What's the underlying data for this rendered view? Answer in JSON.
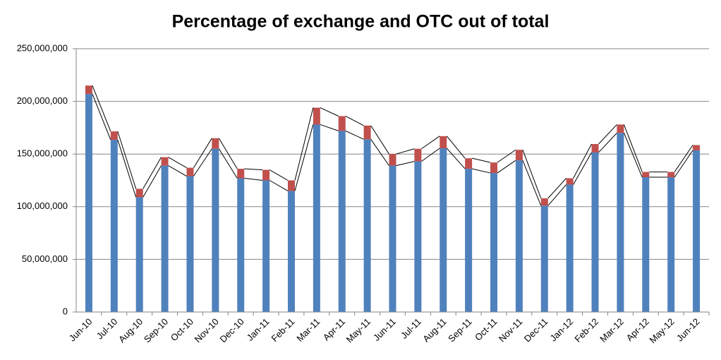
{
  "chart_data": {
    "type": "stacked-bar",
    "title": "Percentage of exchange and OTC out of total",
    "categories": [
      "Jun-10",
      "Jul-10",
      "Aug-10",
      "Sep-10",
      "Oct-10",
      "Nov-10",
      "Dec-10",
      "Jan-11",
      "Feb-11",
      "Mar-11",
      "Apr-11",
      "May-11",
      "Jun-11",
      "Jul-11",
      "Aug-11",
      "Sep-11",
      "Oct-11",
      "Nov-11",
      "Dec-11",
      "Jan-12",
      "Feb-12",
      "Mar-12",
      "Apr-12",
      "May-12",
      "Jun-12"
    ],
    "series": [
      {
        "color": "#4f81bd",
        "values": [
          207000000,
          163500000,
          109000000,
          139000000,
          129000000,
          155000000,
          127000000,
          125000000,
          115000000,
          178000000,
          172000000,
          164000000,
          139000000,
          143000000,
          155500000,
          136000000,
          132000000,
          144000000,
          101000000,
          121000000,
          151500000,
          170000000,
          128000000,
          128000000,
          153500000
        ]
      },
      {
        "color": "#c0504d",
        "values": [
          8000000,
          8000000,
          8000000,
          8000000,
          8000000,
          10000000,
          9000000,
          10000000,
          10000000,
          16000000,
          14000000,
          13000000,
          11000000,
          12000000,
          11500000,
          10000000,
          10000000,
          10000000,
          7000000,
          6000000,
          8000000,
          8000000,
          5000000,
          5000000,
          5000000
        ]
      }
    ],
    "ylim": [
      0,
      250000000
    ],
    "yticks": [
      0,
      {
        "value": 50000000,
        "label": "50,000,000"
      },
      {
        "value": 100000000,
        "label": "100,000,000"
      },
      {
        "value": 150000000,
        "label": "150,000,000"
      },
      {
        "value": 200000000,
        "label": "200,000,000"
      },
      {
        "value": 250000000,
        "label": "250,000,000"
      }
    ],
    "grid": true,
    "series_lines": true
  }
}
